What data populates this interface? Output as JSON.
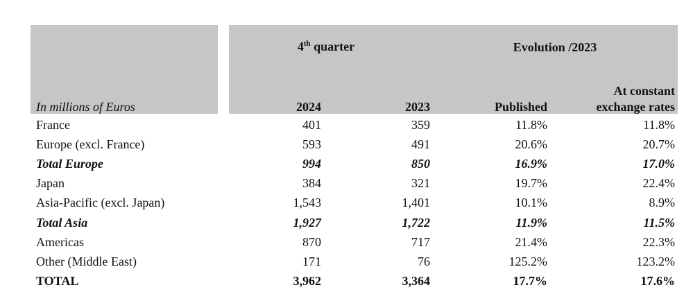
{
  "header": {
    "unit_label": "In millions of Euros",
    "quarter_prefix": "4",
    "quarter_sup": "th",
    "quarter_suffix": " quarter",
    "evolution": "Evolution /2023",
    "col_2024": "2024",
    "col_2023": "2023",
    "col_published": "Published",
    "col_constant_line1": "At constant",
    "col_constant_line2": "exchange rates"
  },
  "rows": [
    {
      "label": "France",
      "v2024": "401",
      "v2023": "359",
      "published": "11.8%",
      "constant": "11.8%",
      "style": "normal"
    },
    {
      "label": "Europe (excl. France)",
      "v2024": "593",
      "v2023": "491",
      "published": "20.6%",
      "constant": "20.7%",
      "style": "normal"
    },
    {
      "label": "Total Europe",
      "v2024": "994",
      "v2023": "850",
      "published": "16.9%",
      "constant": "17.0%",
      "style": "bold-italic"
    },
    {
      "label": "Japan",
      "v2024": "384",
      "v2023": "321",
      "published": "19.7%",
      "constant": "22.4%",
      "style": "normal"
    },
    {
      "label": "Asia-Pacific (excl. Japan)",
      "v2024": "1,543",
      "v2023": "1,401",
      "published": "10.1%",
      "constant": "8.9%",
      "style": "normal"
    },
    {
      "label": "Total Asia",
      "v2024": "1,927",
      "v2023": "1,722",
      "published": "11.9%",
      "constant": "11.5%",
      "style": "bold-italic"
    },
    {
      "label": "Americas",
      "v2024": "870",
      "v2023": "717",
      "published": "21.4%",
      "constant": "22.3%",
      "style": "normal"
    },
    {
      "label": "Other (Middle East)",
      "v2024": "171",
      "v2023": "76",
      "published": "125.2%",
      "constant": "123.2%",
      "style": "normal"
    },
    {
      "label": "TOTAL",
      "v2024": "3,962",
      "v2023": "3,364",
      "published": "17.7%",
      "constant": "17.6%",
      "style": "bold"
    }
  ]
}
